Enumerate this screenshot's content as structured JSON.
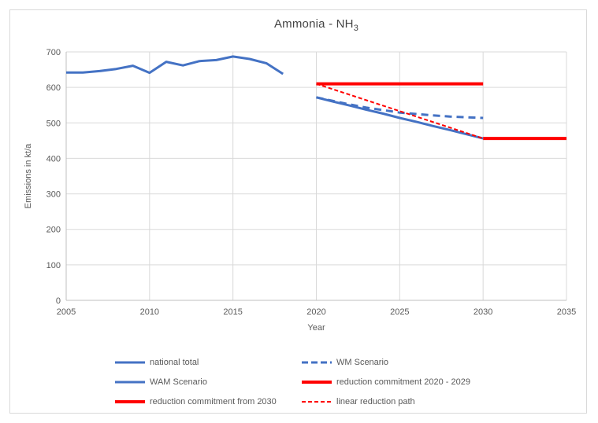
{
  "title": {
    "text": "Ammonia - NH",
    "subscript": "3"
  },
  "colors": {
    "series_blue": "#4472C4",
    "series_red": "#FF0000",
    "gridline": "#D9D9D9",
    "axis_line": "#BFBFBF",
    "axis_text": "#595959",
    "title_text": "#444444",
    "frame_border": "#D9D9D9"
  },
  "chart_data": {
    "type": "line",
    "title": "Ammonia - NH3",
    "xlabel": "Year",
    "ylabel": "Emissions in kt/a",
    "xlim": [
      2005,
      2035
    ],
    "ylim": [
      0,
      700
    ],
    "x_ticks": [
      2005,
      2010,
      2015,
      2020,
      2025,
      2030,
      2035
    ],
    "y_ticks": [
      0,
      100,
      200,
      300,
      400,
      500,
      600,
      700
    ],
    "grid": true,
    "legend_position": "bottom",
    "series": [
      {
        "name": "national total",
        "color": "#4472C4",
        "line_style": "solid",
        "width": 3,
        "x": [
          2005,
          2006,
          2007,
          2008,
          2009,
          2010,
          2011,
          2012,
          2013,
          2014,
          2015,
          2016,
          2017,
          2018
        ],
        "y": [
          642,
          642,
          646,
          652,
          661,
          641,
          672,
          662,
          674,
          677,
          687,
          680,
          668,
          638
        ]
      },
      {
        "name": "WM Scenario",
        "color": "#4472C4",
        "line_style": "dashed",
        "width": 3,
        "x": [
          2020,
          2021,
          2022,
          2023,
          2024,
          2025,
          2026,
          2027,
          2028,
          2029,
          2030
        ],
        "y": [
          572,
          562,
          552,
          543,
          536,
          529,
          525,
          521,
          518,
          516,
          514
        ]
      },
      {
        "name": "WAM Scenario",
        "color": "#4472C4",
        "line_style": "solid",
        "width": 3,
        "x": [
          2020,
          2021,
          2022,
          2023,
          2024,
          2025,
          2026,
          2027,
          2028,
          2029,
          2030
        ],
        "y": [
          572,
          560,
          549,
          537,
          526,
          514,
          503,
          491,
          480,
          468,
          456
        ]
      },
      {
        "name": "reduction commitment 2020 - 2029",
        "color": "#FF0000",
        "line_style": "solid",
        "width": 4,
        "x": [
          2020,
          2030
        ],
        "y": [
          610,
          610
        ]
      },
      {
        "name": "reduction commitment from 2030",
        "color": "#FF0000",
        "line_style": "solid",
        "width": 4,
        "x": [
          2030,
          2035
        ],
        "y": [
          456,
          456
        ]
      },
      {
        "name": "linear reduction path",
        "color": "#FF0000",
        "line_style": "dashed_fine",
        "width": 2,
        "x": [
          2020,
          2030
        ],
        "y": [
          610,
          456
        ]
      }
    ]
  },
  "legend": {
    "items": [
      {
        "label": "national total",
        "color": "#4472C4",
        "line_style": "solid",
        "width": 3
      },
      {
        "label": "WM Scenario",
        "color": "#4472C4",
        "line_style": "dashed",
        "width": 3
      },
      {
        "label": "WAM Scenario",
        "color": "#4472C4",
        "line_style": "solid",
        "width": 3
      },
      {
        "label": "reduction commitment 2020 - 2029",
        "color": "#FF0000",
        "line_style": "solid",
        "width": 4
      },
      {
        "label": "reduction commitment from 2030",
        "color": "#FF0000",
        "line_style": "solid",
        "width": 4
      },
      {
        "label": "linear reduction path",
        "color": "#FF0000",
        "line_style": "dashed_fine",
        "width": 2
      }
    ]
  }
}
